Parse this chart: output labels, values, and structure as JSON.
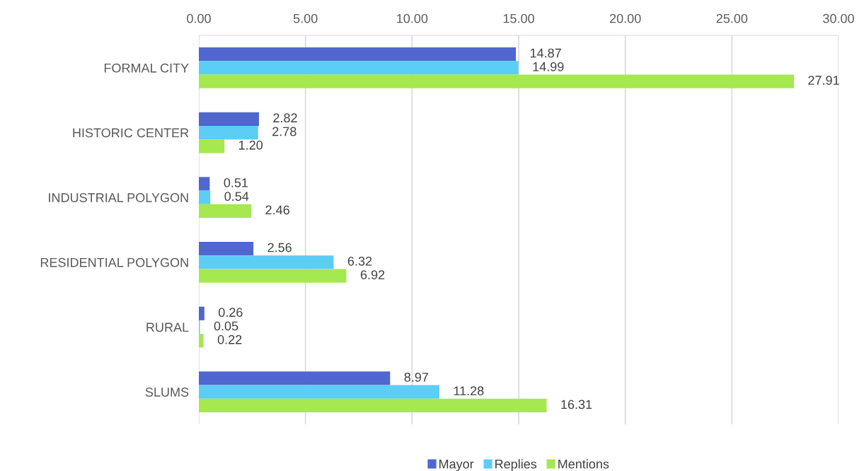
{
  "chart_data": {
    "type": "bar",
    "orientation": "horizontal",
    "categories": [
      "FORMAL CITY",
      "HISTORIC CENTER",
      "INDUSTRIAL POLYGON",
      "RESIDENTIAL POLYGON",
      "RURAL",
      "SLUMS"
    ],
    "series": [
      {
        "name": "Mayor",
        "color": "#4f67cf",
        "values": [
          14.87,
          2.82,
          0.51,
          2.56,
          0.26,
          8.97
        ],
        "value_labels": [
          "14.87",
          "2.82",
          "0.51",
          "2.56",
          "0.26",
          "8.97"
        ]
      },
      {
        "name": "Replies",
        "color": "#5ccdf4",
        "values": [
          14.99,
          2.78,
          0.54,
          6.32,
          0.05,
          11.28
        ],
        "value_labels": [
          "14.99",
          "2.78",
          "0.54",
          "6.32",
          "0.05",
          "11.28"
        ]
      },
      {
        "name": "Mentions",
        "color": "#a5e850",
        "values": [
          27.91,
          1.2,
          2.46,
          6.92,
          0.22,
          16.31
        ],
        "value_labels": [
          "27.91",
          "1.20",
          "2.46",
          "6.92",
          "0.22",
          "16.31"
        ]
      }
    ],
    "xlim": [
      0,
      30
    ],
    "xticks": [
      {
        "value": 0,
        "label": "0.00"
      },
      {
        "value": 5,
        "label": "5.00"
      },
      {
        "value": 10,
        "label": "10.00"
      },
      {
        "value": 15,
        "label": "15.00"
      },
      {
        "value": 20,
        "label": "20.00"
      },
      {
        "value": 25,
        "label": "25.00"
      },
      {
        "value": 30,
        "label": "30.00"
      }
    ],
    "grid": "x",
    "legend": "bottom"
  }
}
